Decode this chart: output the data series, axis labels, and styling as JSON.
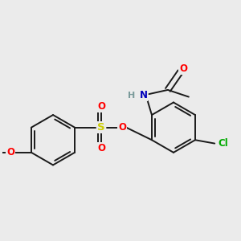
{
  "background_color": "#ebebeb",
  "bond_color": "#1a1a1a",
  "atom_colors": {
    "O": "#ff0000",
    "S": "#cccc00",
    "N": "#0000bb",
    "Cl": "#00aa00",
    "H": "#7a9a9a",
    "C": "#1a1a1a"
  },
  "figsize": [
    3.0,
    3.0
  ],
  "dpi": 100,
  "lw": 1.4,
  "r": 0.36
}
